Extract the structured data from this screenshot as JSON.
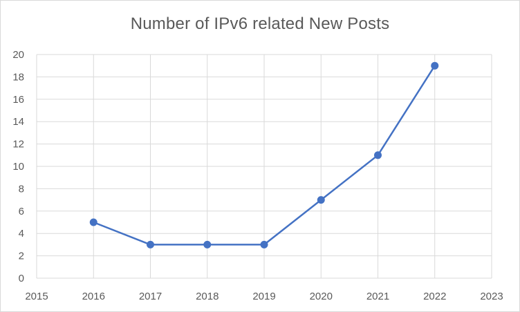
{
  "chart_data": {
    "type": "line",
    "title": "Number of IPv6 related New Posts",
    "xlabel": "",
    "ylabel": "",
    "xlim": [
      2015,
      2023
    ],
    "ylim": [
      0,
      20
    ],
    "x_ticks": [
      "2015",
      "2016",
      "2017",
      "2018",
      "2019",
      "2020",
      "2021",
      "2022",
      "2023"
    ],
    "y_ticks": [
      "0",
      "2",
      "4",
      "6",
      "8",
      "10",
      "12",
      "14",
      "16",
      "18",
      "20"
    ],
    "grid": true,
    "legend": "none",
    "x": [
      2016,
      2017,
      2018,
      2019,
      2020,
      2021,
      2022
    ],
    "series": [
      {
        "values": [
          5,
          3,
          3,
          3,
          7,
          11,
          19
        ],
        "color": "#4472c4"
      }
    ]
  }
}
